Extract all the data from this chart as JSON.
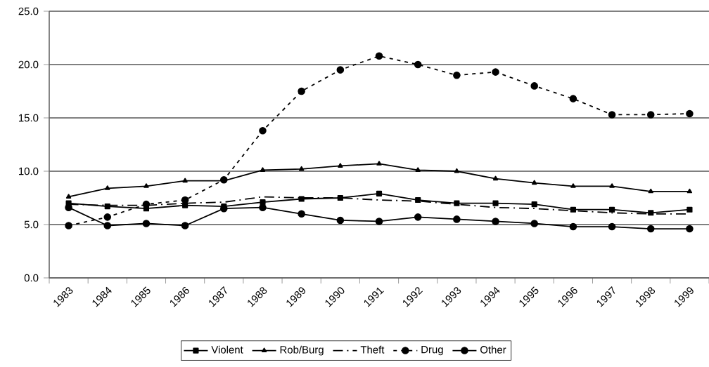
{
  "chart_data": {
    "type": "line",
    "categories": [
      "1983",
      "1984",
      "1985",
      "1986",
      "1987",
      "1988",
      "1989",
      "1990",
      "1991",
      "1992",
      "1993",
      "1994",
      "1995",
      "1996",
      "1997",
      "1998",
      "1999"
    ],
    "ylim": [
      0,
      25
    ],
    "yticks": [
      {
        "value": 0,
        "label": "0.0"
      },
      {
        "value": 5,
        "label": "5.0"
      },
      {
        "value": 10,
        "label": "10.0"
      },
      {
        "value": 15,
        "label": "15.0"
      },
      {
        "value": 20,
        "label": "20.0"
      },
      {
        "value": 25,
        "label": "25.0"
      }
    ],
    "grid": "y",
    "legend": "bottom",
    "series": [
      {
        "name": "Violent",
        "color": "#000000",
        "marker": "square",
        "line_style": "solid",
        "values": [
          7.0,
          6.7,
          6.5,
          6.8,
          6.7,
          7.1,
          7.4,
          7.5,
          7.9,
          7.3,
          7.0,
          7.0,
          6.9,
          6.4,
          6.4,
          6.1,
          6.4
        ]
      },
      {
        "name": "Rob/Burg",
        "color": "#000000",
        "marker": "triangle",
        "line_style": "solid",
        "values": [
          7.6,
          8.4,
          8.6,
          9.1,
          9.1,
          10.1,
          10.2,
          10.5,
          10.7,
          10.1,
          10.0,
          9.3,
          8.9,
          8.6,
          8.6,
          8.1,
          8.1
        ]
      },
      {
        "name": "Theft",
        "color": "#000000",
        "marker": "none",
        "line_style": "dashed",
        "values": [
          6.9,
          6.8,
          6.8,
          7.0,
          7.1,
          7.6,
          7.5,
          7.5,
          7.3,
          7.2,
          6.9,
          6.6,
          6.5,
          6.3,
          6.1,
          6.0,
          6.0
        ]
      },
      {
        "name": "Drug",
        "color": "#000000",
        "marker": "circle",
        "line_style": "dotted",
        "values": [
          4.9,
          5.7,
          6.9,
          7.3,
          9.2,
          13.8,
          17.5,
          19.5,
          20.8,
          20.0,
          19.0,
          19.3,
          18.0,
          16.8,
          15.3,
          15.3,
          15.4
        ]
      },
      {
        "name": "Other",
        "color": "#000000",
        "marker": "circle",
        "line_style": "solid",
        "values": [
          6.6,
          4.9,
          5.1,
          4.9,
          6.5,
          6.6,
          6.0,
          5.4,
          5.3,
          5.7,
          5.5,
          5.3,
          5.1,
          4.8,
          4.8,
          4.6,
          4.6
        ]
      }
    ]
  }
}
